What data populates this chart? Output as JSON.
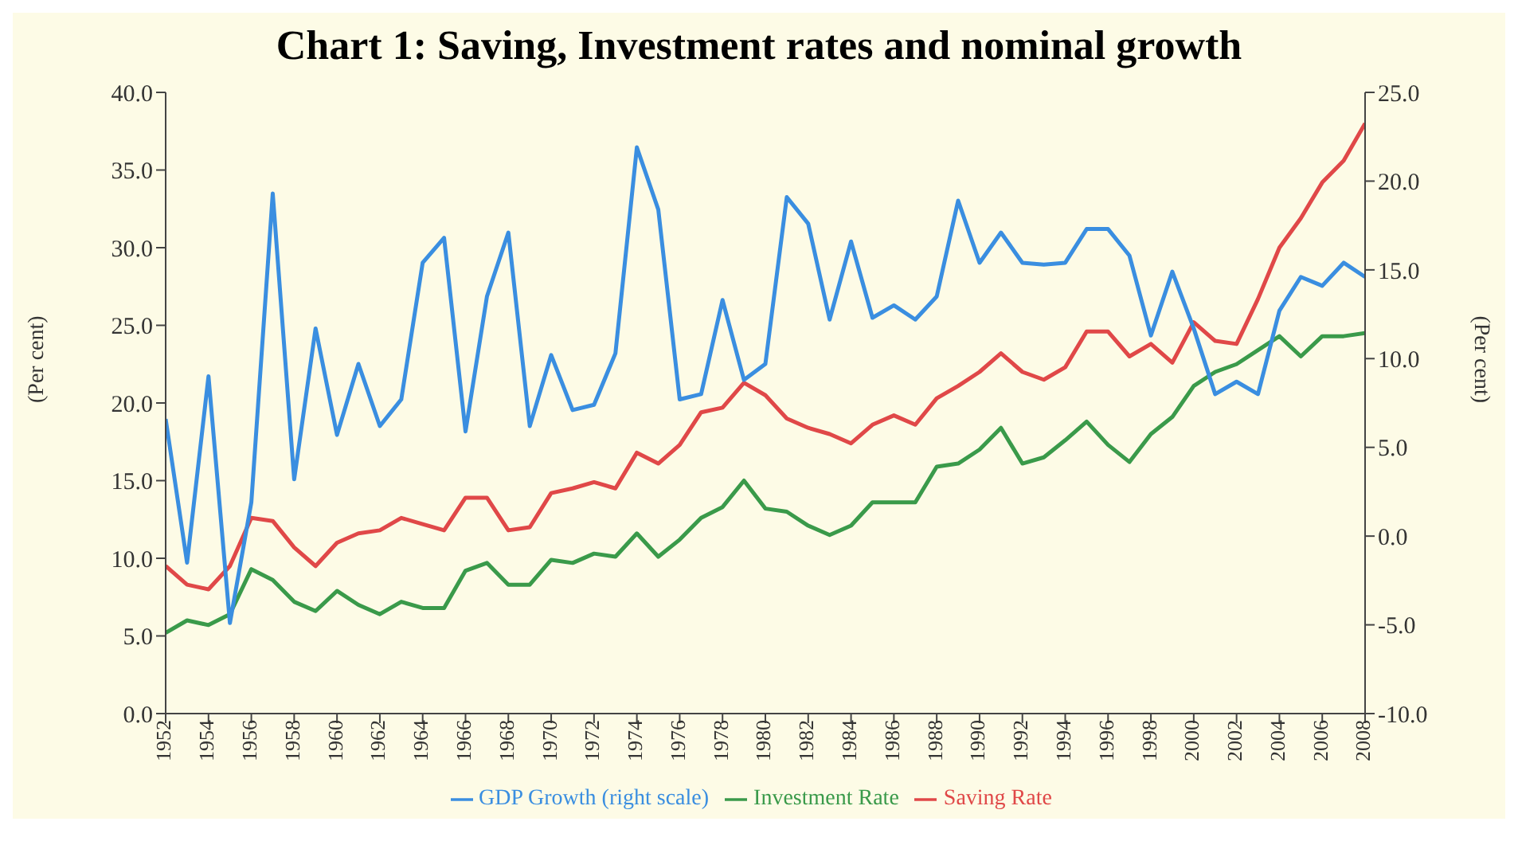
{
  "chart_data": {
    "type": "line",
    "title": "Chart 1: Saving, Investment rates and nominal growth",
    "ylabel": "(Per cent)",
    "y2label": "(Per cent)",
    "x": [
      1952,
      1953,
      1954,
      1955,
      1956,
      1957,
      1958,
      1959,
      1960,
      1961,
      1962,
      1963,
      1964,
      1965,
      1966,
      1967,
      1968,
      1969,
      1970,
      1971,
      1972,
      1973,
      1974,
      1975,
      1976,
      1977,
      1978,
      1979,
      1980,
      1981,
      1982,
      1983,
      1984,
      1985,
      1986,
      1987,
      1988,
      1989,
      1990,
      1991,
      1992,
      1993,
      1994,
      1995,
      1996,
      1997,
      1998,
      1999,
      2000,
      2001,
      2002,
      2003,
      2004,
      2005,
      2006,
      2007,
      2008
    ],
    "xlim": [
      1952,
      2008
    ],
    "xticks": [
      1952,
      1954,
      1956,
      1958,
      1960,
      1962,
      1964,
      1966,
      1968,
      1970,
      1972,
      1974,
      1976,
      1978,
      1980,
      1982,
      1984,
      1986,
      1988,
      1990,
      1992,
      1994,
      1996,
      1998,
      2000,
      2002,
      2004,
      2006,
      2008
    ],
    "ylim": [
      0,
      40
    ],
    "yticks": [
      {
        "value": 0,
        "label": "0.0"
      },
      {
        "value": 5,
        "label": "5.0"
      },
      {
        "value": 10,
        "label": "10.0"
      },
      {
        "value": 15,
        "label": "15.0"
      },
      {
        "value": 20,
        "label": "20.0"
      },
      {
        "value": 25,
        "label": "25.0"
      },
      {
        "value": 30,
        "label": "30.0"
      },
      {
        "value": 35,
        "label": "35.0"
      },
      {
        "value": 40,
        "label": "40.0"
      }
    ],
    "y2lim": [
      -10,
      25
    ],
    "y2ticks": [
      {
        "value": -10,
        "label": "-10.0"
      },
      {
        "value": -5,
        "label": "-5.0"
      },
      {
        "value": 0,
        "label": "0.0"
      },
      {
        "value": 5,
        "label": "5.0"
      },
      {
        "value": 10,
        "label": "10.0"
      },
      {
        "value": 15,
        "label": "15.0"
      },
      {
        "value": 20,
        "label": "20.0"
      },
      {
        "value": 25,
        "label": "25.0"
      }
    ],
    "series": [
      {
        "name": "Saving Rate",
        "color": "#e04848",
        "values": [
          9.5,
          8.3,
          8.0,
          9.5,
          12.6,
          12.4,
          10.7,
          9.5,
          11.0,
          11.6,
          11.8,
          12.6,
          12.2,
          11.8,
          13.9,
          13.9,
          11.8,
          12.0,
          14.2,
          14.5,
          14.9,
          14.5,
          16.8,
          16.1,
          17.3,
          19.4,
          19.7,
          21.3,
          20.5,
          19.0,
          18.4,
          18.0,
          17.4,
          18.6,
          19.2,
          18.6,
          20.3,
          21.1,
          22.0,
          23.2,
          22.0,
          21.5,
          22.3,
          24.6,
          24.6,
          23.0,
          23.8,
          22.6,
          25.2,
          24.0,
          23.8,
          26.7,
          30.0,
          31.9,
          34.2,
          35.6,
          38.0
        ]
      },
      {
        "name": "Investment Rate",
        "color": "#3a9a4a",
        "values": [
          5.2,
          6.0,
          5.7,
          6.4,
          9.3,
          8.6,
          7.2,
          6.6,
          7.9,
          7.0,
          6.4,
          7.2,
          6.8,
          6.8,
          9.2,
          9.7,
          8.3,
          8.3,
          9.9,
          9.7,
          10.3,
          10.1,
          11.6,
          10.1,
          11.2,
          12.6,
          13.3,
          15.0,
          13.2,
          13.0,
          12.1,
          11.5,
          12.1,
          13.6,
          13.6,
          13.6,
          15.9,
          16.1,
          17.0,
          18.4,
          16.1,
          16.5,
          17.6,
          18.8,
          17.3,
          16.2,
          18.0,
          19.1,
          21.1,
          22.0,
          22.5,
          23.4,
          24.3,
          23.0,
          24.3,
          24.3,
          24.5
        ]
      },
      {
        "name": "GDP Growth (right scale)",
        "color": "#3a8ee0",
        "axis": "y2",
        "values": [
          6.6,
          -1.5,
          9.0,
          -4.9,
          1.9,
          19.3,
          3.2,
          11.7,
          5.7,
          9.7,
          6.2,
          7.7,
          15.4,
          16.8,
          5.9,
          13.5,
          17.1,
          6.2,
          10.2,
          7.1,
          7.4,
          10.3,
          21.9,
          18.4,
          7.7,
          8.0,
          13.3,
          8.8,
          9.7,
          19.1,
          17.6,
          12.2,
          16.6,
          12.3,
          13.0,
          12.2,
          13.5,
          18.9,
          15.4,
          17.1,
          15.4,
          15.3,
          15.4,
          17.3,
          17.3,
          15.8,
          11.3,
          14.9,
          11.7,
          8.0,
          8.7,
          8.0,
          12.7,
          14.6,
          14.1,
          15.4,
          14.6
        ]
      }
    ],
    "legend": "bottom",
    "marker": "none",
    "line_style": "solid"
  }
}
